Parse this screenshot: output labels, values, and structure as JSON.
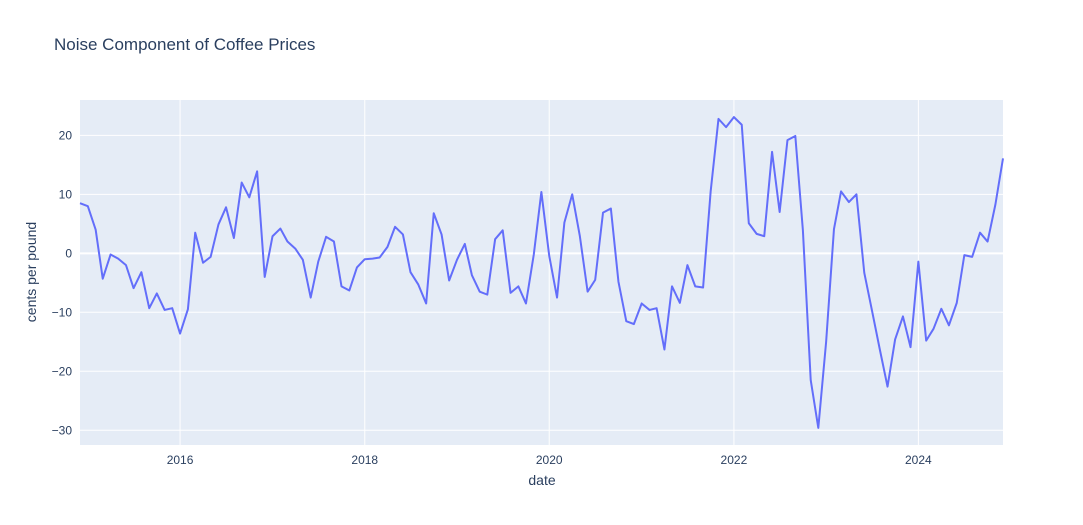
{
  "chart_data": {
    "type": "line",
    "title": "Noise Component of Coffee Prices",
    "xlabel": "date",
    "ylabel": "cents per pound",
    "xlim": [
      "2014-12-01",
      "2024-12-01"
    ],
    "ylim": [
      -32.5,
      26
    ],
    "grid": true,
    "legend": "none",
    "colors": {
      "line": "#636efa",
      "plot_bg": "#e5ecf6",
      "grid": "#ffffff",
      "text": "#2a3f5f"
    },
    "x_ticks": [
      {
        "value": "2016-01-01",
        "label": "2016"
      },
      {
        "value": "2018-01-01",
        "label": "2018"
      },
      {
        "value": "2020-01-01",
        "label": "2020"
      },
      {
        "value": "2022-01-01",
        "label": "2022"
      },
      {
        "value": "2024-01-01",
        "label": "2024"
      }
    ],
    "y_ticks": [
      {
        "value": 20,
        "label": "20"
      },
      {
        "value": 10,
        "label": "10"
      },
      {
        "value": 0,
        "label": "0"
      },
      {
        "value": -10,
        "label": "−10"
      },
      {
        "value": -20,
        "label": "−20"
      },
      {
        "value": -30,
        "label": "−30"
      }
    ],
    "series": [
      {
        "x": [
          "2014-12",
          "2015-01",
          "2015-02",
          "2015-03",
          "2015-04",
          "2015-05",
          "2015-06",
          "2015-07",
          "2015-08",
          "2015-09",
          "2015-10",
          "2015-11",
          "2015-12",
          "2016-01",
          "2016-02",
          "2016-03",
          "2016-04",
          "2016-05",
          "2016-06",
          "2016-07",
          "2016-08",
          "2016-09",
          "2016-10",
          "2016-11",
          "2016-12",
          "2017-01",
          "2017-02",
          "2017-03",
          "2017-04",
          "2017-05",
          "2017-06",
          "2017-07",
          "2017-08",
          "2017-09",
          "2017-10",
          "2017-11",
          "2017-12",
          "2018-01",
          "2018-02",
          "2018-03",
          "2018-04",
          "2018-05",
          "2018-06",
          "2018-07",
          "2018-08",
          "2018-09",
          "2018-10",
          "2018-11",
          "2018-12",
          "2019-01",
          "2019-02",
          "2019-03",
          "2019-04",
          "2019-05",
          "2019-06",
          "2019-07",
          "2019-08",
          "2019-09",
          "2019-10",
          "2019-11",
          "2019-12",
          "2020-01",
          "2020-02",
          "2020-03",
          "2020-04",
          "2020-05",
          "2020-06",
          "2020-07",
          "2020-08",
          "2020-09",
          "2020-10",
          "2020-11",
          "2020-12",
          "2021-01",
          "2021-02",
          "2021-03",
          "2021-04",
          "2021-05",
          "2021-06",
          "2021-07",
          "2021-08",
          "2021-09",
          "2021-10",
          "2021-11",
          "2021-12",
          "2022-01",
          "2022-02",
          "2022-03",
          "2022-04",
          "2022-05",
          "2022-06",
          "2022-07",
          "2022-08",
          "2022-09",
          "2022-10",
          "2022-11",
          "2022-12",
          "2023-01",
          "2023-02",
          "2023-03",
          "2023-04",
          "2023-05",
          "2023-06",
          "2023-07",
          "2023-08",
          "2023-09",
          "2023-10",
          "2023-11",
          "2023-12",
          "2024-01",
          "2024-02",
          "2024-03",
          "2024-04",
          "2024-05",
          "2024-06",
          "2024-07",
          "2024-08",
          "2024-09",
          "2024-10",
          "2024-11",
          "2024-12"
        ],
        "y": [
          8.5,
          8.0,
          4.0,
          -4.3,
          -0.2,
          -0.9,
          -2.0,
          -5.9,
          -3.2,
          -9.3,
          -6.8,
          -9.6,
          -9.3,
          -13.6,
          -9.5,
          3.5,
          -1.6,
          -0.6,
          4.9,
          7.8,
          2.6,
          12.0,
          9.5,
          13.9,
          -4.0,
          2.9,
          4.2,
          2.0,
          0.8,
          -1.1,
          -7.5,
          -1.4,
          2.8,
          2.0,
          -5.6,
          -6.3,
          -2.4,
          -1.0,
          -0.9,
          -0.7,
          1.1,
          4.5,
          3.2,
          -3.2,
          -5.3,
          -8.5,
          6.8,
          3.2,
          -4.6,
          -1.1,
          1.6,
          -3.7,
          -6.5,
          -7.0,
          2.4,
          3.9,
          -6.7,
          -5.6,
          -8.5,
          -0.2,
          10.4,
          -0.4,
          -7.5,
          5.2,
          10.0,
          3.0,
          -6.5,
          -4.5,
          6.9,
          7.6,
          -4.8,
          -11.5,
          -12.0,
          -8.5,
          -9.6,
          -9.3,
          -16.3,
          -5.6,
          -8.4,
          -2.0,
          -5.6,
          -5.8,
          10.5,
          22.8,
          21.4,
          23.1,
          21.8,
          5.1,
          3.3,
          2.9,
          17.2,
          7.0,
          19.2,
          19.9,
          3.9,
          -21.5,
          -29.6,
          -15.0,
          4.1,
          10.5,
          8.7,
          10.0,
          -3.3,
          -9.6,
          -16.2,
          -22.6,
          -14.6,
          -10.7,
          -15.9,
          -1.4,
          -14.8,
          -12.8,
          -9.4,
          -12.2,
          -8.4,
          -0.3,
          -0.6,
          3.5,
          2.0,
          8.3,
          16.1
        ]
      }
    ]
  }
}
